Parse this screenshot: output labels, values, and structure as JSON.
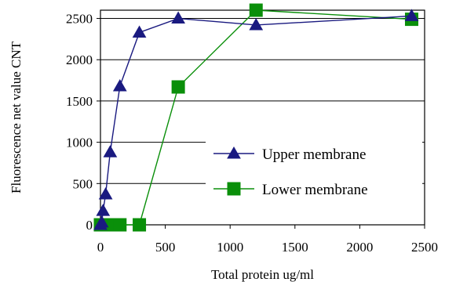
{
  "chart_data": {
    "type": "line",
    "title": "",
    "xlabel": "Total protein  ug/ml",
    "ylabel": "Fluorescence net value  CNT",
    "xlim": [
      0,
      2500
    ],
    "ylim": [
      0,
      2600
    ],
    "xticks": [
      0,
      500,
      1000,
      1500,
      2000,
      2500
    ],
    "yticks": [
      0,
      500,
      1000,
      1500,
      2000,
      2500
    ],
    "grid": "horizontal",
    "legend_position": "center-right",
    "series": [
      {
        "name": "Upper membrane",
        "color": "#1a1a80",
        "marker": "triangle",
        "points": [
          {
            "x": 0,
            "y": 0
          },
          {
            "x": 10,
            "y": 30
          },
          {
            "x": 20,
            "y": 170
          },
          {
            "x": 40,
            "y": 370
          },
          {
            "x": 75,
            "y": 880
          },
          {
            "x": 150,
            "y": 1680
          },
          {
            "x": 300,
            "y": 2330
          },
          {
            "x": 600,
            "y": 2500
          },
          {
            "x": 1200,
            "y": 2420
          },
          {
            "x": 2400,
            "y": 2530
          }
        ]
      },
      {
        "name": "Lower membrane",
        "color": "#0a8f0a",
        "marker": "square",
        "points": [
          {
            "x": 0,
            "y": 0
          },
          {
            "x": 10,
            "y": 0
          },
          {
            "x": 20,
            "y": 0
          },
          {
            "x": 40,
            "y": 0
          },
          {
            "x": 75,
            "y": 0
          },
          {
            "x": 150,
            "y": 0
          },
          {
            "x": 300,
            "y": 0
          },
          {
            "x": 600,
            "y": 1670
          },
          {
            "x": 1200,
            "y": 2600
          },
          {
            "x": 2400,
            "y": 2490
          }
        ]
      }
    ]
  }
}
